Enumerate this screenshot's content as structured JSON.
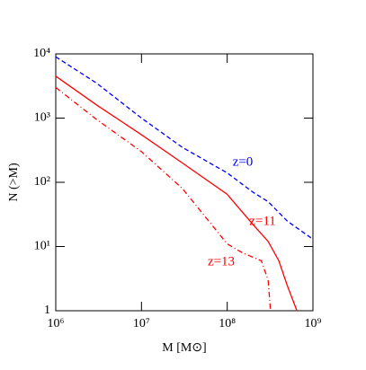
{
  "chart_data": {
    "type": "line",
    "xlabel": "M [M⊙]",
    "ylabel": "N (>M)",
    "xscale": "log",
    "yscale": "log",
    "xlim": [
      1000000,
      1000000000
    ],
    "ylim": [
      1,
      10000
    ],
    "xticks": [
      {
        "value": 1000000,
        "label": "10⁶"
      },
      {
        "value": 10000000,
        "label": "10⁷"
      },
      {
        "value": 100000000,
        "label": "10⁸"
      },
      {
        "value": 1000000000,
        "label": "10⁹"
      }
    ],
    "yticks": [
      1,
      {
        "value": 10,
        "label": "10¹"
      },
      {
        "value": 100,
        "label": "10²"
      },
      {
        "value": 1000,
        "label": "10³"
      },
      {
        "value": 10000,
        "label": "10⁴"
      }
    ],
    "series": [
      {
        "name": "z=0",
        "color": "#0000ff",
        "style": "dashed",
        "x": [
          1000000,
          3000000,
          10000000,
          30000000,
          100000000,
          200000000,
          300000000,
          500000000,
          1000000000
        ],
        "values": [
          9000,
          3500,
          1000,
          350,
          140,
          70,
          50,
          25,
          13
        ]
      },
      {
        "name": "z=11",
        "color": "#ff0000",
        "style": "solid",
        "x": [
          1000000,
          3000000,
          10000000,
          30000000,
          100000000,
          200000000,
          300000000,
          400000000,
          500000000,
          650000000
        ],
        "values": [
          4500,
          1600,
          550,
          200,
          65,
          22,
          12,
          6,
          2.5,
          1
        ]
      },
      {
        "name": "z=13",
        "color": "#ff0000",
        "style": "dashdot",
        "x": [
          1000000,
          3000000,
          10000000,
          30000000,
          100000000,
          150000000,
          250000000,
          300000000,
          320000000
        ],
        "values": [
          3000,
          950,
          300,
          80,
          11,
          8,
          6,
          3,
          1
        ]
      }
    ]
  }
}
